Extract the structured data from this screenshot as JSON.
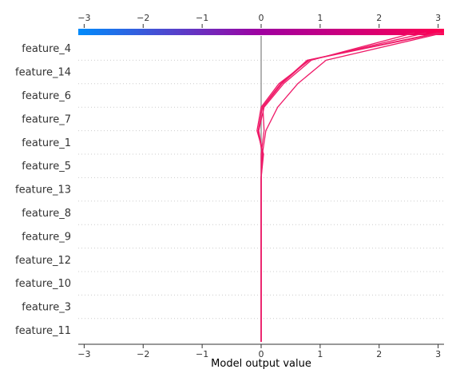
{
  "chart_data": {
    "type": "decision",
    "title": "",
    "xlabel": "Model output value",
    "ylabel": "",
    "xlim": [
      -3.1,
      3.1
    ],
    "xticks": [
      -3,
      -2,
      -1,
      0,
      1,
      2,
      3
    ],
    "base_value": 0,
    "grid": "dotted horizontal separators",
    "features_top_to_bottom": [
      "feature_4",
      "feature_14",
      "feature_6",
      "feature_7",
      "feature_1",
      "feature_5",
      "feature_13",
      "feature_8",
      "feature_9",
      "feature_12",
      "feature_10",
      "feature_3",
      "feature_11"
    ],
    "colorbar": {
      "range": [
        -3.1,
        3.1
      ],
      "low_color": "#008bfb",
      "mid_color": "#a000a0",
      "high_color": "#ff0052"
    },
    "line_color": "#ef1a68",
    "base_line_color": "#999999",
    "series": [
      {
        "values": [
          3.0,
          0.78,
          0.33,
          0.02,
          -0.05,
          0.02,
          0.0,
          0.0,
          0.0,
          0.0,
          0.0,
          0.0,
          0.0,
          0.0
        ]
      },
      {
        "values": [
          2.6,
          0.85,
          0.38,
          0.05,
          -0.04,
          0.03,
          0.0,
          0.0,
          0.0,
          0.0,
          0.0,
          0.0,
          0.0,
          0.0
        ]
      },
      {
        "values": [
          3.1,
          1.1,
          0.62,
          0.28,
          0.08,
          0.02,
          0.0,
          0.0,
          0.0,
          0.0,
          0.0,
          0.0,
          0.0,
          0.0
        ]
      },
      {
        "values": [
          2.8,
          0.82,
          0.3,
          0.0,
          -0.07,
          0.04,
          0.0,
          0.0,
          0.0,
          0.0,
          0.0,
          0.0,
          0.0,
          0.0
        ]
      },
      {
        "values": [
          3.05,
          0.8,
          0.35,
          0.03,
          0.05,
          0.0,
          0.0,
          0.0,
          0.0,
          0.0,
          0.0,
          0.0,
          0.0,
          0.0
        ]
      }
    ]
  }
}
